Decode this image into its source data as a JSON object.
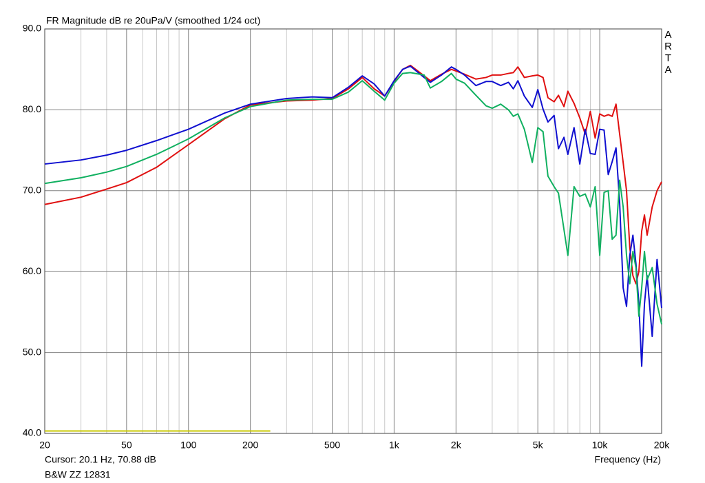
{
  "chart_data": {
    "type": "line",
    "title": "FR Magnitude dB re 20uPa/V (smoothed 1/24 oct)",
    "brand": "ARTA",
    "cursor_text": "Cursor: 20.1 Hz, 70.88 dB",
    "footer": "B&W ZZ 12831",
    "x_label": "Frequency (Hz)",
    "log_x": true,
    "grid": true,
    "xlim": [
      20,
      20000
    ],
    "ylim": [
      40,
      90
    ],
    "xticks": [
      20,
      50,
      100,
      200,
      500,
      {
        "value": 1000,
        "label": "1k"
      },
      {
        "value": 2000,
        "label": "2k"
      },
      {
        "value": 5000,
        "label": "5k"
      },
      {
        "value": 10000,
        "label": "10k"
      },
      {
        "value": 20000,
        "label": "20k"
      }
    ],
    "x_minor_grid": [
      30,
      40,
      60,
      70,
      80,
      90,
      300,
      400,
      600,
      700,
      800,
      900,
      3000,
      4000,
      6000,
      7000,
      8000,
      9000
    ],
    "yticks": [
      {
        "value": 40,
        "label": "40.0"
      },
      {
        "value": 50,
        "label": "50.0"
      },
      {
        "value": 60,
        "label": "60.0"
      },
      {
        "value": 70,
        "label": "70.0"
      },
      {
        "value": 80,
        "label": "80.0"
      },
      {
        "value": 90,
        "label": "90.0"
      }
    ],
    "x": [
      20,
      30,
      40,
      50,
      70,
      100,
      150,
      200,
      300,
      400,
      500,
      600,
      700,
      800,
      900,
      1000,
      1100,
      1200,
      1400,
      1500,
      1700,
      1900,
      2000,
      2200,
      2500,
      2800,
      3000,
      3300,
      3600,
      3800,
      4000,
      4300,
      4700,
      5000,
      5300,
      5600,
      6000,
      6300,
      6700,
      7000,
      7500,
      8000,
      8500,
      9000,
      9500,
      10000,
      10500,
      11000,
      11500,
      12000,
      12500,
      13000,
      13500,
      14000,
      14500,
      15000,
      15500,
      16000,
      16500,
      17000,
      18000,
      19000,
      20000
    ],
    "series": [
      {
        "color": "#e01010",
        "values": [
          68.3,
          69.2,
          70.2,
          71.0,
          72.9,
          75.7,
          78.9,
          80.6,
          81.1,
          81.2,
          81.4,
          82.6,
          84.0,
          82.6,
          81.7,
          83.5,
          85.0,
          85.5,
          84.2,
          83.6,
          84.4,
          85.0,
          84.8,
          84.4,
          83.8,
          84.0,
          84.3,
          84.3,
          84.5,
          84.6,
          85.3,
          84.0,
          84.2,
          84.3,
          84.0,
          81.5,
          81.0,
          81.8,
          80.4,
          82.3,
          80.8,
          79.0,
          77.0,
          79.8,
          76.5,
          79.5,
          79.2,
          79.4,
          79.2,
          80.7,
          77.0,
          73.5,
          70.0,
          63.0,
          59.5,
          58.5,
          60.0,
          65.0,
          67.0,
          64.5,
          68.0,
          70.0,
          71.1
        ]
      },
      {
        "color": "#1010d0",
        "values": [
          73.3,
          73.8,
          74.4,
          75.0,
          76.2,
          77.6,
          79.6,
          80.7,
          81.4,
          81.6,
          81.5,
          82.8,
          84.2,
          83.2,
          81.7,
          83.6,
          85.0,
          85.4,
          84.0,
          83.4,
          84.3,
          85.3,
          85.0,
          84.3,
          83.0,
          83.5,
          83.5,
          83.0,
          83.4,
          82.6,
          83.6,
          81.7,
          80.3,
          82.5,
          80.1,
          78.5,
          79.3,
          75.2,
          76.6,
          74.5,
          77.8,
          73.3,
          77.6,
          74.6,
          74.5,
          77.6,
          77.5,
          72.0,
          73.6,
          75.3,
          68.5,
          58.0,
          55.7,
          62.0,
          64.5,
          61.0,
          56.0,
          48.3,
          56.0,
          59.5,
          52.0,
          61.5,
          55.5
        ]
      },
      {
        "color": "#10b060",
        "values": [
          70.9,
          71.6,
          72.3,
          73.0,
          74.5,
          76.4,
          79.0,
          80.4,
          81.2,
          81.3,
          81.3,
          82.2,
          83.6,
          82.3,
          81.2,
          83.3,
          84.5,
          84.6,
          84.3,
          82.7,
          83.5,
          84.5,
          83.8,
          83.3,
          81.8,
          80.5,
          80.2,
          80.7,
          80.0,
          79.2,
          79.5,
          77.6,
          73.5,
          77.8,
          77.3,
          71.8,
          70.5,
          69.7,
          65.2,
          62.0,
          70.5,
          69.3,
          69.6,
          68.0,
          70.5,
          62.0,
          69.8,
          70.0,
          64.0,
          64.5,
          71.3,
          68.0,
          62.0,
          58.5,
          62.5,
          60.5,
          54.5,
          58.0,
          62.5,
          59.0,
          60.5,
          56.0,
          53.5
        ]
      },
      {
        "color": "#c8c800",
        "x": [
          20,
          250
        ],
        "values": [
          40.3,
          40.3
        ]
      }
    ]
  }
}
